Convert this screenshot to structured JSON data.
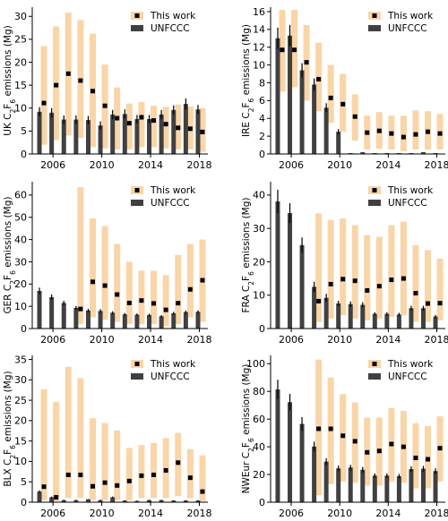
{
  "chart_data": [
    {
      "type": "bar",
      "panel": "UK",
      "ylabel_prefix": "UK",
      "ylabel_suffix": "emissions (Mg)",
      "ylim": [
        0,
        32
      ],
      "yticks": [
        0,
        5,
        10,
        15,
        20,
        25,
        30
      ],
      "x": [
        2005,
        2006,
        2007,
        2008,
        2009,
        2010,
        2011,
        2012,
        2013,
        2014,
        2015,
        2016,
        2017,
        2018
      ],
      "xticks": [
        2006,
        2010,
        2014,
        2018
      ],
      "legend": [
        "This work",
        "UNFCCC"
      ],
      "legend_position": "top-right",
      "series": [
        {
          "name": "This work",
          "type": "range",
          "values": [
            11.1,
            15,
            17.5,
            16,
            13.7,
            10.5,
            7.8,
            6.7,
            8,
            7.3,
            6.5,
            5.7,
            5.5,
            4.8
          ],
          "low": [
            2,
            3,
            4,
            3.5,
            1.5,
            1.2,
            1,
            1,
            1.5,
            1.5,
            1.2,
            1,
            1,
            0.5
          ],
          "high": [
            23.5,
            27.8,
            30.8,
            29.2,
            26.2,
            19.5,
            14.5,
            11,
            11.3,
            10.5,
            10.3,
            10.8,
            10.3,
            10
          ]
        },
        {
          "name": "UNFCCC",
          "type": "bar",
          "values": [
            9.2,
            9,
            7.5,
            7.5,
            7.4,
            6.2,
            8.6,
            8.7,
            7.6,
            7.6,
            8.6,
            9.6,
            10.9,
            9.7
          ],
          "err": [
            1,
            1,
            0.9,
            0.9,
            0.9,
            0.9,
            1,
            1,
            0.9,
            0.9,
            1,
            1,
            1.2,
            1
          ]
        }
      ]
    },
    {
      "type": "bar",
      "panel": "IRE",
      "ylabel_prefix": "IRE",
      "ylabel_suffix": "emissions (Mg)",
      "ylim": [
        0,
        16.5
      ],
      "yticks": [
        0,
        2,
        4,
        6,
        8,
        10,
        12,
        14,
        16
      ],
      "x": [
        2005,
        2006,
        2007,
        2008,
        2009,
        2010,
        2011,
        2012,
        2013,
        2014,
        2015,
        2016,
        2017,
        2018
      ],
      "xticks": [
        2006,
        2010,
        2014,
        2018
      ],
      "legend": [
        "This work",
        "UNFCCC"
      ],
      "legend_position": "top-right",
      "series": [
        {
          "name": "This work",
          "type": "range",
          "values": [
            11.7,
            11.7,
            10.3,
            8.4,
            6.3,
            5.6,
            4.2,
            2.4,
            2.6,
            2.3,
            1.9,
            2.2,
            2.5,
            2.3
          ],
          "low": [
            7,
            7.5,
            6,
            4.8,
            3.5,
            2.5,
            1.5,
            0.5,
            0.6,
            0.5,
            0.3,
            0.5,
            0.5,
            0.5
          ],
          "high": [
            16.2,
            16.2,
            14.5,
            12.5,
            10,
            9,
            6.7,
            4.3,
            4.7,
            4.3,
            4.3,
            4.9,
            4.8,
            4.5
          ]
        },
        {
          "name": "UNFCCC",
          "type": "bar",
          "values": [
            13,
            13.3,
            9.4,
            7.8,
            5.2,
            2.5,
            0.1,
            0.2,
            0.1,
            0.1,
            0.1,
            0.1,
            0.2,
            0.1
          ],
          "err": [
            1.2,
            1.2,
            0.8,
            0.7,
            0.5,
            0.3,
            0,
            0,
            0,
            0,
            0,
            0,
            0,
            0
          ]
        }
      ]
    },
    {
      "type": "bar",
      "panel": "GER",
      "ylabel_prefix": "GER",
      "ylabel_suffix": "emissions (Mg)",
      "ylim": [
        0,
        66
      ],
      "yticks": [
        0,
        10,
        20,
        30,
        40,
        50,
        60
      ],
      "x": [
        2005,
        2006,
        2007,
        2008,
        2009,
        2010,
        2011,
        2012,
        2013,
        2014,
        2015,
        2016,
        2017,
        2018
      ],
      "xticks": [
        2006,
        2010,
        2014,
        2018
      ],
      "legend": [
        "This work",
        "UNFCCC"
      ],
      "legend_position": "top-right",
      "series": [
        {
          "name": "This work",
          "type": "range",
          "values": [
            null,
            null,
            null,
            8.8,
            21,
            19.3,
            15.3,
            11.5,
            12.6,
            11.3,
            8.4,
            11.4,
            17.6,
            21.7
          ],
          "low": [
            null,
            null,
            null,
            2,
            5,
            4,
            3,
            2,
            2,
            2,
            1,
            2,
            5,
            3
          ],
          "high": [
            null,
            null,
            null,
            63.5,
            49.5,
            46,
            38,
            30,
            26,
            26,
            24,
            33,
            38,
            40
          ]
        },
        {
          "name": "UNFCCC",
          "type": "bar",
          "values": [
            16.9,
            14.1,
            11.5,
            9.3,
            8.1,
            7.9,
            7.1,
            6.4,
            6.2,
            6.1,
            5.5,
            6.9,
            7.4,
            7.5
          ],
          "err": [
            1.5,
            1.2,
            1,
            0.9,
            0.8,
            0.8,
            0.7,
            0.6,
            0.6,
            0.6,
            0.5,
            0.6,
            0.7,
            0.7
          ]
        }
      ]
    },
    {
      "type": "bar",
      "panel": "FRA",
      "ylabel_prefix": "FRA",
      "ylabel_suffix": "emissions (Mg)",
      "ylim": [
        0,
        44
      ],
      "yticks": [
        0,
        10,
        20,
        30,
        40
      ],
      "x": [
        2005,
        2006,
        2007,
        2008,
        2009,
        2010,
        2011,
        2012,
        2013,
        2014,
        2015,
        2016,
        2017,
        2018
      ],
      "xticks": [
        2006,
        2010,
        2014,
        2018
      ],
      "legend": [
        "This work",
        "UNFCCC"
      ],
      "legend_position": "top-right",
      "series": [
        {
          "name": "This work",
          "type": "range",
          "values": [
            null,
            null,
            null,
            8.2,
            13.3,
            14.8,
            14.3,
            11.4,
            12.7,
            14.6,
            15,
            10.6,
            7.5,
            7.6
          ],
          "low": [
            null,
            null,
            null,
            2,
            3,
            4,
            3,
            2.5,
            3,
            3.5,
            4,
            2,
            2,
            2.5
          ],
          "high": [
            null,
            null,
            null,
            34.5,
            32.5,
            33,
            31,
            28,
            27.5,
            31,
            32,
            25,
            23.5,
            21
          ]
        },
        {
          "name": "UNFCCC",
          "type": "bar",
          "values": [
            38.1,
            34.6,
            25,
            12.5,
            9.2,
            7.5,
            7.3,
            7.1,
            4.4,
            4.4,
            4.2,
            6.1,
            6.1,
            3.6
          ],
          "err": [
            3.5,
            3,
            2.3,
            1.5,
            1.2,
            0.8,
            0.8,
            0.8,
            0.5,
            0.5,
            0.5,
            0.7,
            0.7,
            0.5
          ]
        }
      ]
    },
    {
      "type": "bar",
      "panel": "BLX",
      "ylabel_prefix": "BLX",
      "ylabel_suffix": "emissions (Mg)",
      "ylim": [
        0,
        36
      ],
      "yticks": [
        0,
        5,
        10,
        15,
        20,
        25,
        30,
        35
      ],
      "x": [
        2005,
        2006,
        2007,
        2008,
        2009,
        2010,
        2011,
        2012,
        2013,
        2014,
        2015,
        2016,
        2017,
        2018
      ],
      "xticks": [
        2006,
        2010,
        2014,
        2018
      ],
      "legend": [
        "This work",
        "UNFCCC"
      ],
      "legend_position": "top-right",
      "series": [
        {
          "name": "This work",
          "type": "range",
          "values": [
            3.8,
            1.2,
            6.7,
            6.7,
            3.9,
            4.8,
            4.1,
            5.2,
            6.5,
            6.7,
            7.8,
            9.7,
            6,
            2.6
          ],
          "low": [
            0.5,
            0.2,
            1,
            1,
            0.5,
            0.5,
            0.5,
            0.5,
            1,
            1,
            1,
            1.5,
            1,
            0.3
          ],
          "high": [
            27.7,
            24.6,
            33.2,
            30.4,
            20.6,
            19.4,
            17.6,
            13.3,
            14,
            14.5,
            15.7,
            17,
            13,
            11.5
          ]
        },
        {
          "name": "UNFCCC",
          "type": "bar",
          "values": [
            2.6,
            1.2,
            0.5,
            0.5,
            0.7,
            0.5,
            1.2,
            0.4,
            0.3,
            0.5,
            0.5,
            0.4,
            0.4,
            0.4
          ],
          "err": [
            0.3,
            0.2,
            0.1,
            0.1,
            0.1,
            0.1,
            0.2,
            0.1,
            0.1,
            0.1,
            0.1,
            0.1,
            0.1,
            0.1
          ]
        }
      ]
    },
    {
      "type": "bar",
      "panel": "NWEur",
      "ylabel_prefix": "NWEur",
      "ylabel_suffix": "emissions (Mg)",
      "ylim": [
        0,
        106
      ],
      "yticks": [
        0,
        20,
        40,
        60,
        80,
        100
      ],
      "x": [
        2005,
        2006,
        2007,
        2008,
        2009,
        2010,
        2011,
        2012,
        2013,
        2014,
        2015,
        2016,
        2017,
        2018
      ],
      "xticks": [
        2006,
        2010,
        2014,
        2018
      ],
      "legend": [
        "This work",
        "UNFCCC"
      ],
      "legend_position": "top-right",
      "series": [
        {
          "name": "This work",
          "type": "range",
          "values": [
            null,
            null,
            null,
            53,
            53,
            48,
            44,
            36,
            37,
            42,
            40,
            32,
            31,
            39
          ],
          "low": [
            null,
            null,
            null,
            5,
            13,
            15,
            14,
            12,
            12,
            15,
            14,
            10,
            10,
            15
          ],
          "high": [
            null,
            null,
            null,
            103,
            90,
            78,
            72,
            61,
            61,
            68,
            66,
            57,
            55,
            62
          ]
        },
        {
          "name": "UNFCCC",
          "type": "bar",
          "values": [
            81.4,
            72.2,
            56.5,
            40.2,
            29.3,
            24.4,
            25,
            23.4,
            19.2,
            19.2,
            18.8,
            23.9,
            24.2,
            22.5
          ],
          "err": [
            7,
            6,
            5,
            3.5,
            2.5,
            2,
            2,
            2,
            1.6,
            1.6,
            1.6,
            2,
            2,
            2
          ]
        }
      ]
    }
  ],
  "colors": {
    "range": "#f9d5a7",
    "bar": "#404040",
    "marker": "#000000",
    "axis": "#000000"
  }
}
